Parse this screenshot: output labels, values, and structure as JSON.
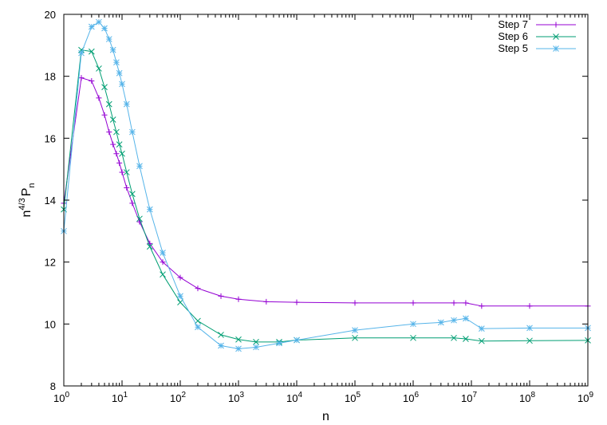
{
  "chart_data": {
    "type": "line",
    "xlabel": "n",
    "ylabel": {
      "base": "n",
      "exponent": "4/3",
      "p": "P",
      "sub": "n"
    },
    "x_scale": "log10",
    "xlim": [
      1,
      1000000000
    ],
    "ylim": [
      8,
      20
    ],
    "x_ticks": [
      {
        "value": 1,
        "base": "10",
        "exp": "0"
      },
      {
        "value": 10,
        "base": "10",
        "exp": "1"
      },
      {
        "value": 100,
        "base": "10",
        "exp": "2"
      },
      {
        "value": 1000,
        "base": "10",
        "exp": "3"
      },
      {
        "value": 10000,
        "base": "10",
        "exp": "4"
      },
      {
        "value": 100000,
        "base": "10",
        "exp": "5"
      },
      {
        "value": 1000000,
        "base": "10",
        "exp": "6"
      },
      {
        "value": 10000000,
        "base": "10",
        "exp": "7"
      },
      {
        "value": 100000000,
        "base": "10",
        "exp": "8"
      },
      {
        "value": 1000000000,
        "base": "10",
        "exp": "9"
      }
    ],
    "y_ticks": [
      "8",
      "10",
      "12",
      "14",
      "16",
      "18",
      "20"
    ],
    "legend_position": "top-right",
    "grid": false,
    "series": [
      {
        "name": "Step 7",
        "color": "#9400d3",
        "marker": "plus",
        "x": [
          1,
          2,
          3,
          4,
          5,
          6,
          7,
          8,
          9,
          10,
          12,
          15,
          20,
          30,
          50,
          100,
          200,
          500,
          1000,
          3000,
          10000,
          100000,
          1000000,
          5000000,
          8000000,
          15000000,
          100000000,
          1000000000
        ],
        "y": [
          13.9,
          17.95,
          17.85,
          17.3,
          16.75,
          16.2,
          15.8,
          15.5,
          15.2,
          14.9,
          14.4,
          13.9,
          13.3,
          12.6,
          12.0,
          11.5,
          11.15,
          10.9,
          10.8,
          10.72,
          10.7,
          10.68,
          10.68,
          10.68,
          10.68,
          10.58,
          10.58,
          10.58
        ]
      },
      {
        "name": "Step 6",
        "color": "#009e73",
        "marker": "cross",
        "x": [
          1,
          2,
          3,
          4,
          5,
          6,
          7,
          8,
          9,
          10,
          12,
          15,
          20,
          30,
          50,
          100,
          200,
          500,
          1000,
          2000,
          5000,
          10000,
          100000,
          1000000,
          5000000,
          8000000,
          15000000,
          100000000,
          1000000000
        ],
        "y": [
          13.7,
          18.85,
          18.8,
          18.25,
          17.65,
          17.1,
          16.6,
          16.2,
          15.8,
          15.5,
          14.9,
          14.2,
          13.4,
          12.5,
          11.6,
          10.7,
          10.1,
          9.65,
          9.5,
          9.42,
          9.42,
          9.48,
          9.55,
          9.55,
          9.55,
          9.52,
          9.45,
          9.46,
          9.47
        ]
      },
      {
        "name": "Step 5",
        "color": "#56b4e9",
        "marker": "star",
        "x": [
          1,
          2,
          3,
          4,
          5,
          6,
          7,
          8,
          9,
          10,
          12,
          15,
          20,
          30,
          50,
          100,
          200,
          500,
          1000,
          2000,
          5000,
          10000,
          100000,
          1000000,
          3000000,
          5000000,
          8000000,
          15000000,
          100000000,
          1000000000
        ],
        "y": [
          13.0,
          18.75,
          19.6,
          19.75,
          19.55,
          19.2,
          18.85,
          18.45,
          18.1,
          17.75,
          17.1,
          16.2,
          15.1,
          13.7,
          12.3,
          10.9,
          9.9,
          9.3,
          9.2,
          9.25,
          9.38,
          9.48,
          9.8,
          10.0,
          10.05,
          10.12,
          10.18,
          9.85,
          9.87,
          9.87
        ]
      }
    ]
  }
}
